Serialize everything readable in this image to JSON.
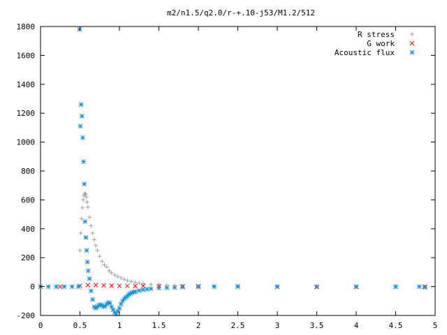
{
  "chart_data": {
    "type": "scatter",
    "title": "m2/n1.5/q2.0/r-+.10-j53/M1.2/512",
    "xlabel": "",
    "ylabel": "",
    "xlim": [
      0,
      5
    ],
    "ylim": [
      -200,
      1800
    ],
    "x_ticks": [
      "0",
      "0.5",
      "1",
      "1.5",
      "2",
      "2.5",
      "3",
      "3.5",
      "4",
      "4.5",
      "5"
    ],
    "y_ticks": [
      "-200",
      "0",
      "200",
      "400",
      "600",
      "800",
      "1000",
      "1200",
      "1400",
      "1600",
      "1800"
    ],
    "grid": false,
    "legend_position": "top-right",
    "series": [
      {
        "name": "R stress",
        "marker": "+",
        "color": "#a0a0a0",
        "x": [
          0.5,
          0.51,
          0.52,
          0.53,
          0.54,
          0.55,
          0.56,
          0.57,
          0.58,
          0.59,
          0.6,
          0.62,
          0.64,
          0.66,
          0.68,
          0.7,
          0.72,
          0.75,
          0.78,
          0.81,
          0.84,
          0.87,
          0.9,
          0.94,
          0.98,
          1.02,
          1.06,
          1.1,
          1.15,
          1.2,
          1.25,
          1.3,
          1.4,
          1.5,
          1.6,
          1.7,
          1.8,
          2.0,
          2.2,
          2.5,
          3.0,
          3.5,
          4.0,
          4.5,
          4.87
        ],
        "y": [
          250,
          370,
          470,
          545,
          600,
          630,
          645,
          640,
          620,
          585,
          550,
          480,
          420,
          370,
          325,
          285,
          250,
          210,
          175,
          150,
          135,
          110,
          95,
          80,
          70,
          60,
          50,
          42,
          35,
          28,
          24,
          20,
          15,
          12,
          10,
          8,
          6,
          4,
          3,
          2,
          1,
          0,
          0,
          0,
          0
        ]
      },
      {
        "name": "G work",
        "marker": "×",
        "color": "#ff0000",
        "x": [
          0.0,
          0.25,
          0.5,
          0.6,
          0.7,
          0.8,
          0.9,
          1.0,
          1.1,
          1.2,
          1.3,
          1.5,
          1.8,
          2.0,
          2.5,
          3.0,
          3.5,
          4.0,
          4.5,
          4.87
        ],
        "y": [
          0,
          0,
          5,
          10,
          10,
          8,
          6,
          5,
          5,
          4,
          4,
          3,
          2,
          2,
          1,
          -2,
          -3,
          -2,
          -1,
          0
        ]
      },
      {
        "name": "Acoustic flux",
        "marker": "✱",
        "color": "#1e90dc",
        "x": [
          0.0,
          0.1,
          0.2,
          0.3,
          0.4,
          0.48,
          0.495,
          0.505,
          0.515,
          0.525,
          0.535,
          0.545,
          0.555,
          0.565,
          0.575,
          0.585,
          0.595,
          0.605,
          0.62,
          0.64,
          0.66,
          0.68,
          0.7,
          0.72,
          0.74,
          0.76,
          0.78,
          0.8,
          0.82,
          0.84,
          0.86,
          0.88,
          0.9,
          0.92,
          0.94,
          0.96,
          0.98,
          1.0,
          1.02,
          1.04,
          1.06,
          1.08,
          1.1,
          1.12,
          1.14,
          1.16,
          1.18,
          1.2,
          1.25,
          1.3,
          1.35,
          1.4,
          1.5,
          1.6,
          1.7,
          1.8,
          2.0,
          2.2,
          2.5,
          3.0,
          3.5,
          4.0,
          4.5,
          4.8,
          4.87
        ],
        "y": [
          0,
          0,
          0,
          0,
          0,
          0,
          1780,
          1110,
          1260,
          1180,
          1030,
          865,
          710,
          450,
          340,
          250,
          170,
          110,
          55,
          -30,
          -90,
          -140,
          -150,
          -140,
          -130,
          -125,
          -130,
          -140,
          -135,
          -120,
          -110,
          -115,
          -140,
          -160,
          -180,
          -190,
          -170,
          -150,
          -120,
          -100,
          -85,
          -75,
          -65,
          -55,
          -48,
          -42,
          -38,
          -35,
          -28,
          -22,
          -18,
          -15,
          -10,
          -8,
          -6,
          -4,
          -2,
          0,
          0,
          0,
          0,
          0,
          0,
          0,
          -5
        ]
      }
    ]
  }
}
